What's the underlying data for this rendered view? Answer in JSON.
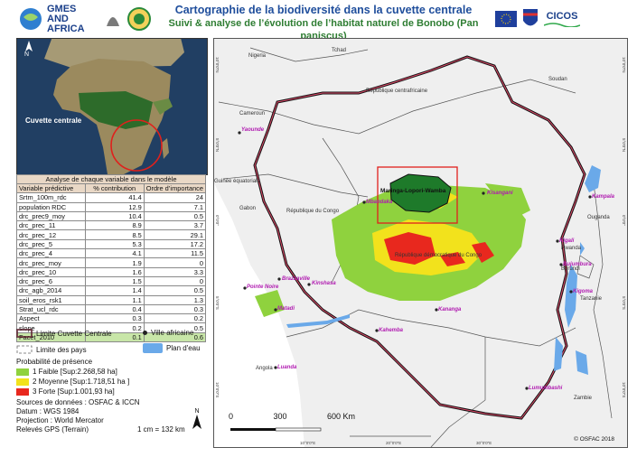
{
  "header": {
    "title": "Cartographie de la biodiversité dans la cuvette centrale",
    "subtitle": "Suivi & analyse de l’évolution de l’habitat naturel de Bonobo (Pan paniscus)",
    "logo_left": "GMES AND AFRICA",
    "logo_right": "CICOS"
  },
  "inset": {
    "label": "Cuvette centrale",
    "north": "N"
  },
  "table": {
    "caption": "Analyse de chaque variable dans le modèle",
    "headers": [
      "Variable prédictive",
      "% contribution",
      "Ordre d’importance"
    ],
    "rows": [
      [
        "Srtm_100m_rdc",
        "41.4",
        "24"
      ],
      [
        "population RDC",
        "12.9",
        "7.1"
      ],
      [
        "drc_prec9_moy",
        "10.4",
        "0.5"
      ],
      [
        "drc_prec_11",
        "8.9",
        "3.7"
      ],
      [
        "drc_prec_12",
        "8.5",
        "29.1"
      ],
      [
        "drc_prec_5",
        "5.3",
        "17.2"
      ],
      [
        "drc_prec_4",
        "4.1",
        "11.5"
      ],
      [
        "drc_prec_moy",
        "1.9",
        "0"
      ],
      [
        "drc_prec_10",
        "1.6",
        "3.3"
      ],
      [
        "drc_prec_6",
        "1.5",
        "0"
      ],
      [
        "drc_agb_2014",
        "1.4",
        "0.5"
      ],
      [
        "soil_eros_rsk1",
        "1.1",
        "1.3"
      ],
      [
        "Strat_ucl_rdc",
        "0.4",
        "0.3"
      ],
      [
        "Aspect",
        "0.3",
        "0.2"
      ],
      [
        "slope",
        "0.2",
        "0.5"
      ],
      [
        "Facet_2010",
        "0.1",
        "0.6"
      ]
    ]
  },
  "legend": {
    "boundary": "Limite Cuvette Centrale",
    "city": "Ville africaine",
    "countries": "Limite des pays",
    "water": "Plan d'eau",
    "prob_title": "Probabilité de présence",
    "classes": [
      {
        "label": "1 Faible [Sup:2.268,58 ha]",
        "color": "#8fd23e"
      },
      {
        "label": "2 Moyenne [Sup:1.718,51 ha ]",
        "color": "#f2e21c"
      },
      {
        "label": "3 Forte [Sup:1.001,93 ha]",
        "color": "#e8281e"
      }
    ],
    "sources": [
      "Sources de données : OSFAC & ICCN",
      "Datum : WGS 1984",
      "Projection : World Mercator",
      "Relevés GPS (Terrain)"
    ],
    "scale_text": "1 cm = 132 km",
    "north": "N"
  },
  "map": {
    "countries": [
      "Nigeria",
      "Tchad",
      "République centrafricaine",
      "Soudan",
      "Cameroun",
      "Guinée équatoriale",
      "Gabon",
      "République du Congo",
      "République démocratique du Congo",
      "Ouganda",
      "Rwanda",
      "Burundi",
      "Tanzanie",
      "Angola",
      "Zambie"
    ],
    "cities": [
      "Yaounde",
      "Kisangani",
      "Mbandaka",
      "Kampala",
      "Kigali",
      "Bujumbura",
      "Kigoma",
      "Pointe Noire",
      "Brazzaville",
      "Kinshasa",
      "Matadi",
      "Kananga",
      "Kahemba",
      "Luanda",
      "Lumumbashi"
    ],
    "focus_label": "Maringa-Lopori-Wamba",
    "scale_labels": [
      "0",
      "300",
      "600 Km"
    ],
    "copyright": "© OSFAC 2018",
    "lat_labels": [
      "10°0'0\"N",
      "5°0'0\"N",
      "0°0'0\"",
      "5°0'0\"S",
      "10°0'0\"S"
    ],
    "lon_labels": [
      "10°0'0\"E",
      "20°0'0\"E",
      "30°0'0\"E"
    ]
  },
  "colors": {
    "faible": "#8fd23e",
    "moyenne": "#f2e21c",
    "forte": "#e8281e",
    "water": "#6aa9e9",
    "title": "#1f4e9c",
    "subtitle": "#2e7d32"
  }
}
